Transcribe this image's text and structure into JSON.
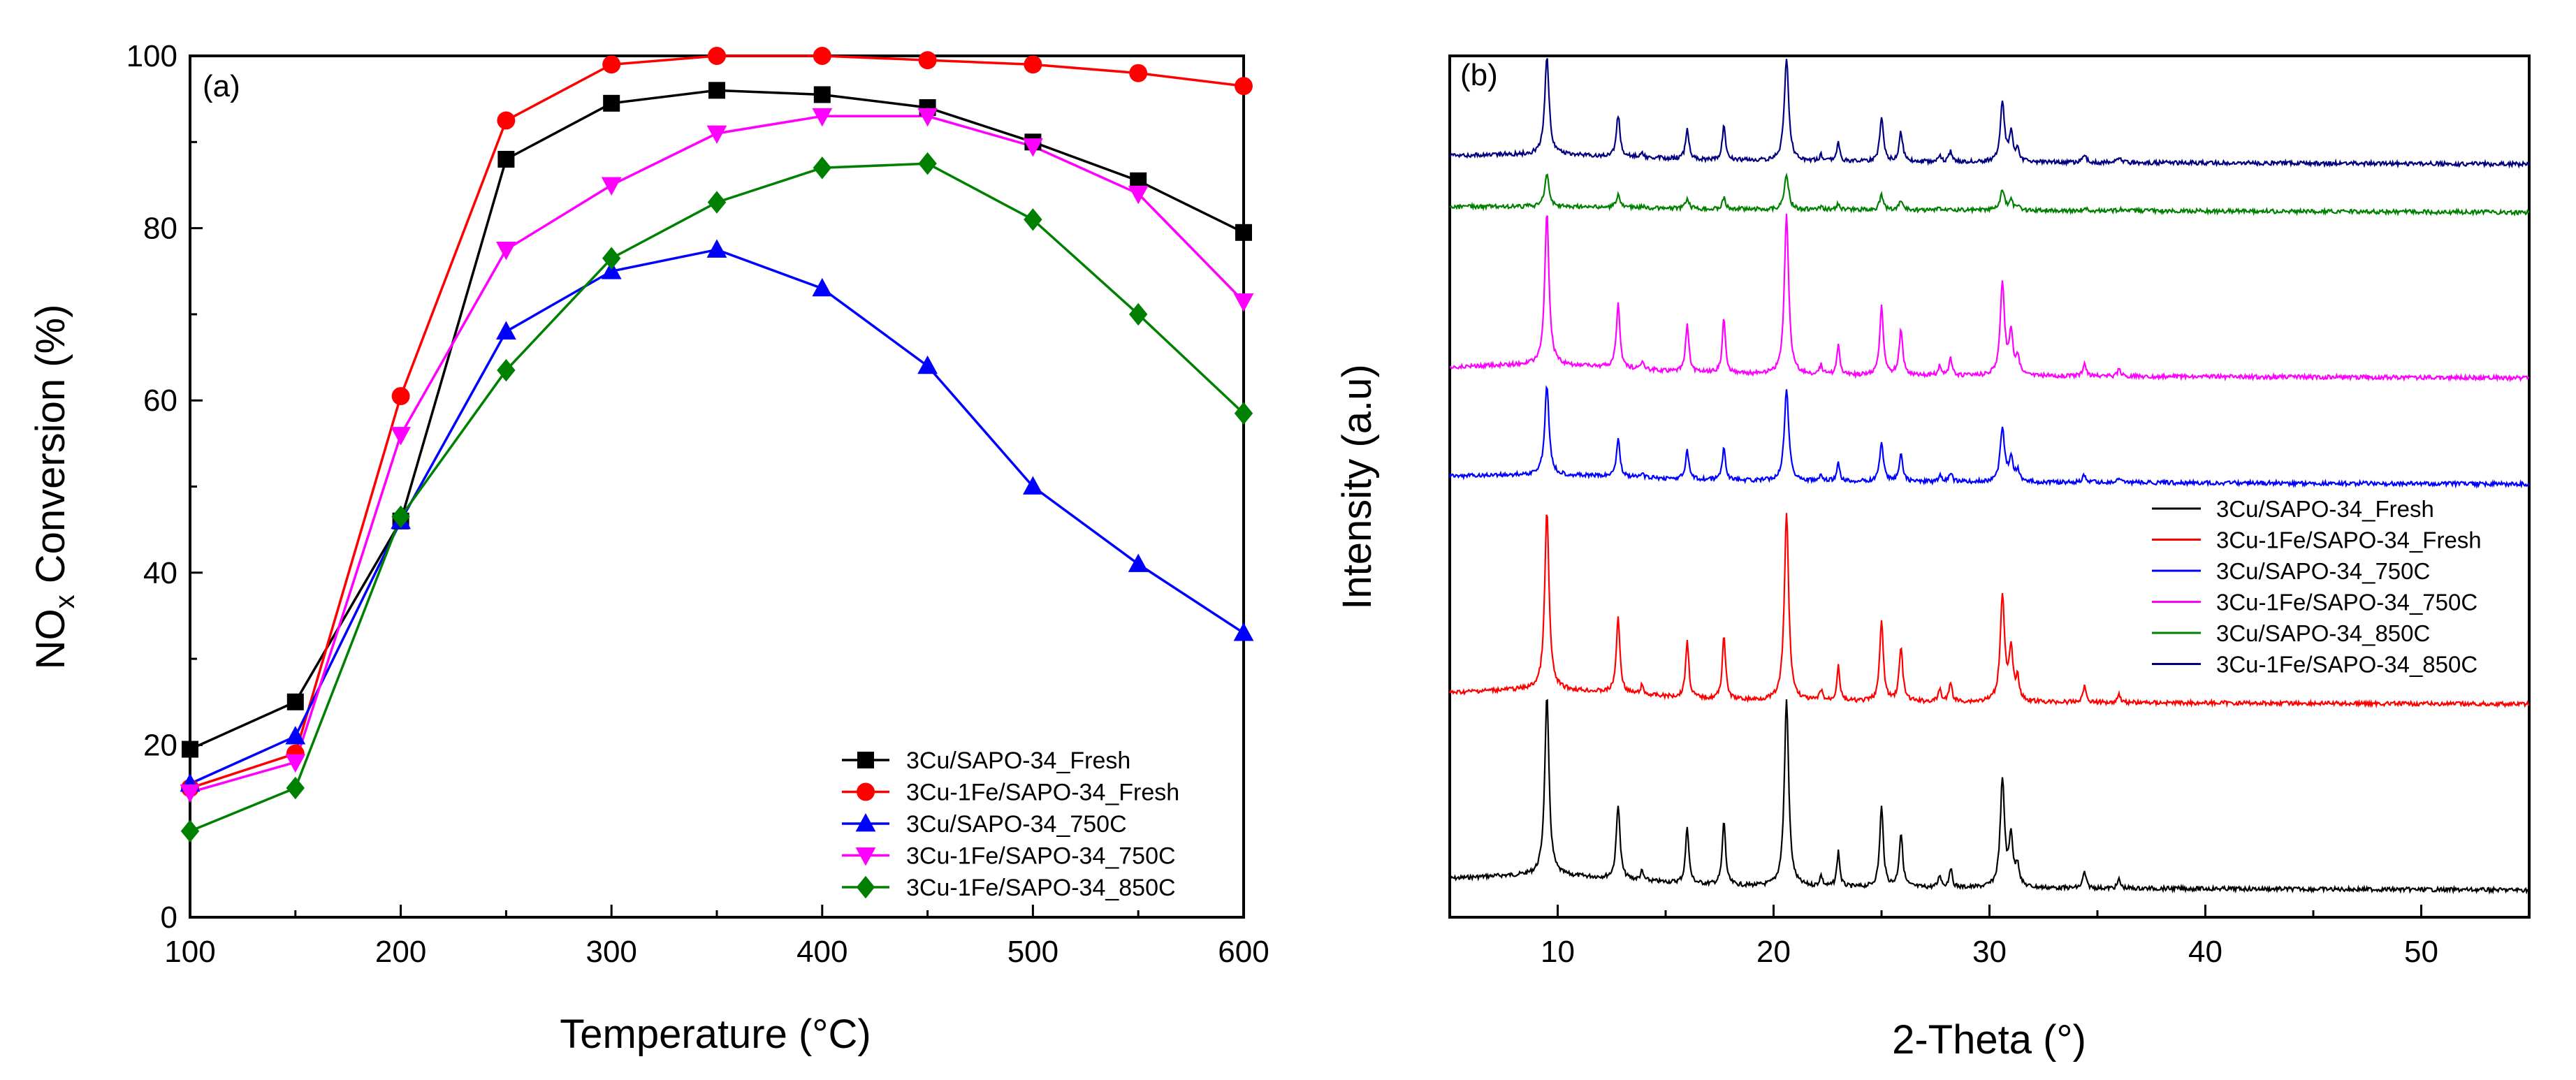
{
  "chart_data": [
    {
      "type": "line",
      "panel_label": "(a)",
      "xlabel": "Temperature (°C)",
      "ylabel": {
        "main": "NO",
        "sub": "x",
        "rest": " Conversion (%)"
      },
      "xlim": [
        100,
        600
      ],
      "ylim": [
        0,
        100
      ],
      "xticks": [
        "100",
        "200",
        "300",
        "400",
        "500",
        "600"
      ],
      "xtick_values": [
        100,
        200,
        300,
        400,
        500,
        600
      ],
      "yticks": [
        "0",
        "20",
        "40",
        "60",
        "80",
        "100"
      ],
      "ytick_values": [
        0,
        20,
        40,
        60,
        80,
        100
      ],
      "x": [
        100,
        150,
        200,
        250,
        300,
        350,
        400,
        450,
        500,
        550,
        600
      ],
      "legend_position": "bottom-right",
      "series": [
        {
          "name": "3Cu/SAPO-34_Fresh",
          "color": "#000000",
          "marker": "square",
          "values": [
            19.5,
            25,
            46,
            88,
            94.5,
            96,
            95.5,
            94,
            90,
            85.5,
            79.5
          ]
        },
        {
          "name": "3Cu-1Fe/SAPO-34_Fresh",
          "color": "#ff0000",
          "marker": "circle",
          "values": [
            15,
            19,
            60.5,
            92.5,
            99,
            100,
            100,
            99.5,
            99,
            98,
            96.5
          ]
        },
        {
          "name": "3Cu/SAPO-34_750C",
          "color": "#0000ff",
          "marker": "triangle-up",
          "values": [
            15.5,
            21,
            46,
            68,
            75,
            77.5,
            73,
            64,
            50,
            41,
            33
          ]
        },
        {
          "name": "3Cu-1Fe/SAPO-34_750C",
          "color": "#ff00ff",
          "marker": "triangle-down",
          "values": [
            14.5,
            18,
            56,
            77.5,
            85,
            91,
            93,
            93,
            89.5,
            84,
            71.5
          ]
        },
        {
          "name": "3Cu-1Fe/SAPO-34_850C",
          "color": "#008000",
          "marker": "diamond",
          "values": [
            10,
            15,
            46.5,
            63.5,
            76.5,
            83,
            87,
            87.5,
            81,
            70,
            58.5
          ]
        }
      ]
    },
    {
      "type": "line",
      "panel_label": "(b)",
      "xlabel": "2-Theta (°)",
      "ylabel": "Intensity (a.u)",
      "xlim": [
        5,
        55
      ],
      "xticks": [
        "10",
        "20",
        "30",
        "40",
        "50"
      ],
      "xtick_values": [
        10,
        20,
        30,
        40,
        50
      ],
      "yticks": [],
      "legend_position": "right-middle",
      "peaks_2theta": [
        9.5,
        12.8,
        13.9,
        16.0,
        17.7,
        20.6,
        22.2,
        23.0,
        25.0,
        25.9,
        27.7,
        28.2,
        30.6,
        31.0,
        31.3,
        34.4,
        36.0
      ],
      "series": [
        {
          "name": "3Cu/SAPO-34_Fresh",
          "color": "#000000",
          "baseline_offset": 0,
          "peak_scale": 1.0
        },
        {
          "name": "3Cu-1Fe/SAPO-34_Fresh",
          "color": "#ff0000",
          "baseline_offset": 1,
          "peak_scale": 1.0
        },
        {
          "name": "3Cu/SAPO-34_750C",
          "color": "#0000ff",
          "baseline_offset": 2,
          "peak_scale": 0.5
        },
        {
          "name": "3Cu-1Fe/SAPO-34_750C",
          "color": "#ff00ff",
          "baseline_offset": 3,
          "peak_scale": 0.85
        },
        {
          "name": "3Cu/SAPO-34_850C",
          "color": "#008000",
          "baseline_offset": 4,
          "peak_scale": 0.18
        },
        {
          "name": "3Cu-1Fe/SAPO-34_850C",
          "color": "#000080",
          "baseline_offset": 5,
          "peak_scale": 0.55
        }
      ]
    }
  ]
}
